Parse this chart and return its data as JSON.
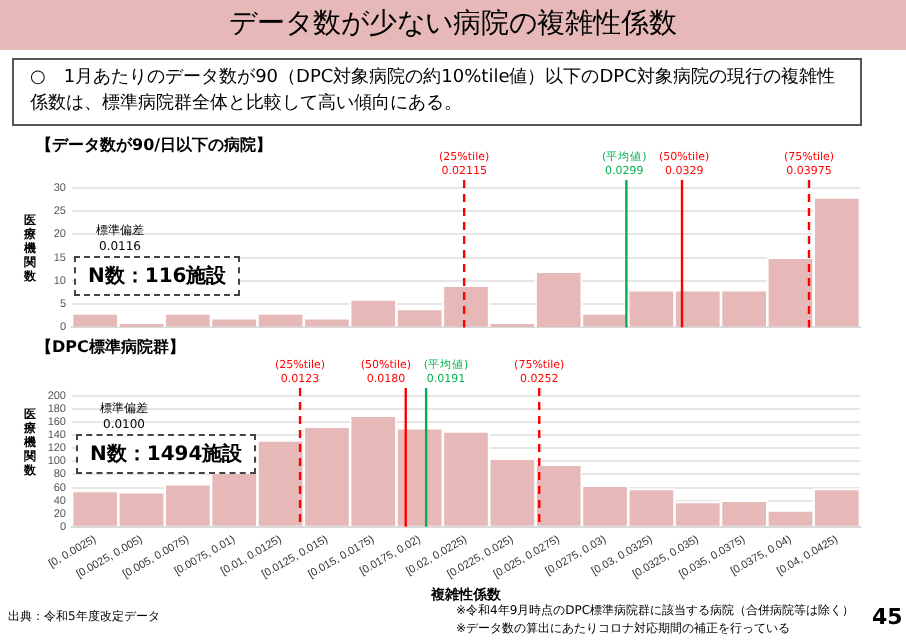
{
  "chart_data": [
    {
      "type": "histogram",
      "title": "【データ数が90/日以下の病院】",
      "ylabel": "医療機関数",
      "bins": [
        0,
        0.0025,
        0.005,
        0.0075,
        0.01,
        0.0125,
        0.015,
        0.0175,
        0.02,
        0.0225,
        0.025,
        0.0275,
        0.03,
        0.0325,
        0.035,
        0.0375,
        0.04,
        0.0425
      ],
      "values": [
        3,
        1,
        3,
        2,
        3,
        2,
        6,
        4,
        9,
        1,
        12,
        3,
        8,
        8,
        8,
        15,
        28
      ],
      "color": "#e6b8b7",
      "xlim": [
        0,
        0.0425
      ],
      "ylim": [
        0,
        30
      ],
      "yticks": [
        0,
        5,
        10,
        15,
        20,
        25,
        30
      ],
      "tick_labels": "y",
      "grid": "y",
      "ref_lines": [
        {
          "axis": "x",
          "value": 0.02115,
          "label": "(25%tile)\n0.02115",
          "color": "#ff0000",
          "line_style": "dashed"
        },
        {
          "axis": "x",
          "value": 0.0299,
          "label": "(平均値)\n0.0299",
          "color": "#00b050",
          "line_style": "solid"
        },
        {
          "axis": "x",
          "value": 0.0329,
          "label": "(50%tile)\n0.0329",
          "color": "#ff0000",
          "line_style": "solid"
        },
        {
          "axis": "x",
          "value": 0.03975,
          "label": "(75%tile)\n0.03975",
          "color": "#ff0000",
          "line_style": "dashed"
        }
      ],
      "annotations": [
        "データ数が少ない病院の複雑性係数",
        "○　1月あたりのデータ数が90（DPC対象病院の約10%tile値）以下のDPC対象病院の現行の複雑性係数は、標準病院群全体と比較して高い傾向にある。",
        "標準偏差\n0.0116",
        "N数：116施設"
      ]
    },
    {
      "type": "histogram",
      "title": "【DPC標準病院群】",
      "xlabel": "複雑性係数",
      "ylabel": "医療機関数",
      "bins": [
        0,
        0.0025,
        0.005,
        0.0075,
        0.01,
        0.0125,
        0.015,
        0.0175,
        0.02,
        0.0225,
        0.025,
        0.0275,
        0.03,
        0.0325,
        0.035,
        0.0375,
        0.04,
        0.0425
      ],
      "values": [
        55,
        53,
        65,
        88,
        132,
        153,
        170,
        151,
        146,
        104,
        95,
        63,
        58,
        38,
        40,
        25,
        58
      ],
      "color": "#e6b8b7",
      "xlim": [
        0,
        0.0425
      ],
      "categories": [
        "[0, 0.0025)",
        "[0.0025, 0.005)",
        "[0.005, 0.0075)",
        "[0.0075, 0.01)",
        "[0.01, 0.0125)",
        "[0.0125, 0.015)",
        "[0.015, 0.0175)",
        "[0.0175, 0.02)",
        "[0.02, 0.0225)",
        "[0.0225, 0.025)",
        "[0.025, 0.0275)",
        "[0.0275, 0.03)",
        "[0.03, 0.0325)",
        "[0.0325, 0.035)",
        "[0.035, 0.0375)",
        "[0.0375, 0.04)",
        "[0.04, 0.0425)"
      ],
      "ylim": [
        0,
        200
      ],
      "yticks": [
        0,
        20,
        40,
        60,
        80,
        100,
        120,
        140,
        160,
        180,
        200
      ],
      "grid": "y",
      "ref_lines": [
        {
          "axis": "x",
          "value": 0.0123,
          "label": "(25%tile)\n0.0123",
          "color": "#ff0000",
          "line_style": "dashed"
        },
        {
          "axis": "x",
          "value": 0.018,
          "label": "(50%tile)\n0.0180",
          "color": "#ff0000",
          "line_style": "solid"
        },
        {
          "axis": "x",
          "value": 0.0191,
          "label": "(平均値)\n0.0191",
          "color": "#00b050",
          "line_style": "solid"
        },
        {
          "axis": "x",
          "value": 0.0252,
          "label": "(75%tile)\n0.0252",
          "color": "#ff0000",
          "line_style": "dashed"
        }
      ],
      "annotations": [
        "標準偏差\n0.0100",
        "N数：1494施設",
        "出典：令和5年度改定データ",
        "※令和4年9月時点のDPC標準病院群に該当する病院（合併病院等は除く）",
        "※データ数の算出にあたりコロナ対応期間の補正を行っている",
        "45"
      ]
    }
  ]
}
